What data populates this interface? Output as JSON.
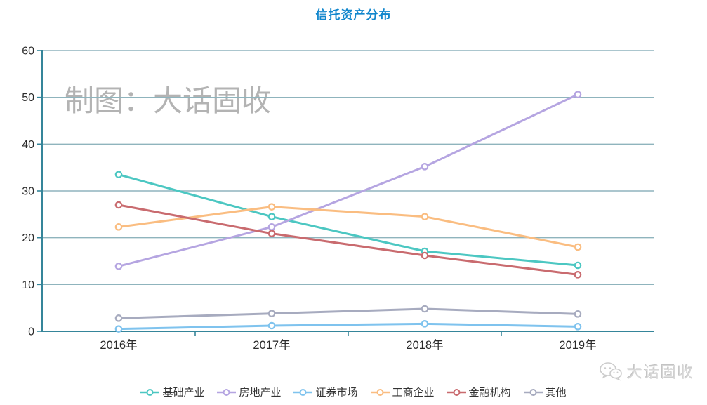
{
  "page": {
    "title": "信托资产分布",
    "title_color": "#1287cd",
    "background": "#ffffff"
  },
  "watermark": {
    "chart_text": "制图：大话固收",
    "color": "#b3b3b3"
  },
  "footer_brand": {
    "icon": "wechat-icon",
    "text": "大话固收",
    "color": "#d7d7d7"
  },
  "chart_data": {
    "type": "line",
    "title": "信托资产分布",
    "categories": [
      "2016年",
      "2017年",
      "2018年",
      "2019年"
    ],
    "series": [
      {
        "name": "基础产业",
        "color": "#4cc7c2",
        "values": [
          33.5,
          24.5,
          17.1,
          14.1
        ]
      },
      {
        "name": "房地产业",
        "color": "#b5a5e1",
        "values": [
          13.9,
          22.3,
          35.2,
          50.6
        ]
      },
      {
        "name": "证券市场",
        "color": "#7fc3ee",
        "values": [
          0.5,
          1.2,
          1.6,
          1.0
        ]
      },
      {
        "name": "工商企业",
        "color": "#fabd81",
        "values": [
          22.3,
          26.6,
          24.5,
          18.0
        ]
      },
      {
        "name": "金融机构",
        "color": "#c96b6f",
        "values": [
          27.0,
          20.9,
          16.2,
          12.1
        ]
      },
      {
        "name": "其他",
        "color": "#a7abbf",
        "values": [
          2.8,
          3.8,
          4.8,
          3.7
        ]
      }
    ],
    "ylim": [
      0,
      60
    ],
    "ytick_step": 10,
    "yticks": [
      0,
      10,
      20,
      30,
      40,
      50,
      60
    ],
    "grid": true,
    "legend_position": "bottom",
    "axis_color": "#35859a",
    "grid_color": "#8fb4bd",
    "label_color": "#2b2b2b"
  }
}
